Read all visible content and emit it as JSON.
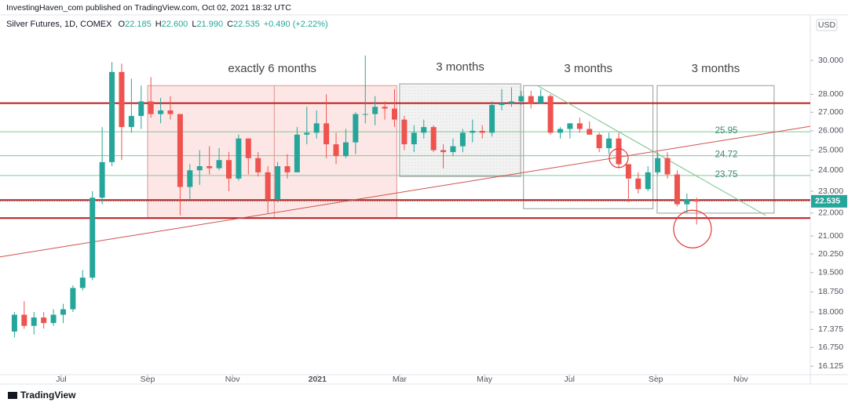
{
  "header": {
    "publisher": "InvestingHaven_com published on TradingView.com, Oct 02, 2021 18:32 UTC",
    "symbol": "Silver Futures, 1D, COMEX",
    "ohlc": [
      [
        "O",
        "22.185"
      ],
      [
        "H",
        "22.600"
      ],
      [
        "L",
        "21.990"
      ],
      [
        "C",
        "22.535"
      ]
    ],
    "change": "+0.490 (+2.22%)",
    "currency": "USD",
    "brand": "TradingView"
  },
  "chart_data": {
    "type": "candlestick",
    "x": [
      "2020-05-25",
      "2020-06-01",
      "2020-06-08",
      "2020-06-15",
      "2020-06-22",
      "2020-06-29",
      "2020-07-06",
      "2020-07-13",
      "2020-07-20",
      "2020-07-27",
      "2020-08-03",
      "2020-08-10",
      "2020-08-17",
      "2020-08-24",
      "2020-08-31",
      "2020-09-07",
      "2020-09-14",
      "2020-09-21",
      "2020-09-28",
      "2020-10-05",
      "2020-10-12",
      "2020-10-19",
      "2020-10-26",
      "2020-11-02",
      "2020-11-09",
      "2020-11-16",
      "2020-11-23",
      "2020-11-30",
      "2020-12-07",
      "2020-12-14",
      "2020-12-21",
      "2020-12-28",
      "2021-01-04",
      "2021-01-11",
      "2021-01-18",
      "2021-01-25",
      "2021-02-01",
      "2021-02-08",
      "2021-02-15",
      "2021-02-22",
      "2021-03-01",
      "2021-03-08",
      "2021-03-15",
      "2021-03-22",
      "2021-03-29",
      "2021-04-05",
      "2021-04-12",
      "2021-04-19",
      "2021-04-26",
      "2021-05-03",
      "2021-05-10",
      "2021-05-17",
      "2021-05-24",
      "2021-05-31",
      "2021-06-07",
      "2021-06-14",
      "2021-06-21",
      "2021-06-28",
      "2021-07-05",
      "2021-07-12",
      "2021-07-19",
      "2021-07-26",
      "2021-08-02",
      "2021-08-09",
      "2021-08-16",
      "2021-08-23",
      "2021-08-30",
      "2021-09-06",
      "2021-09-13",
      "2021-09-20",
      "2021-09-27"
    ],
    "open": [
      17.3,
      17.9,
      17.5,
      17.8,
      17.6,
      17.9,
      18.1,
      18.9,
      19.3,
      22.7,
      24.4,
      29.3,
      26.2,
      26.8,
      27.6,
      26.9,
      27.1,
      26.9,
      23.2,
      24.0,
      24.2,
      24.1,
      24.5,
      23.6,
      25.6,
      24.6,
      23.9,
      22.6,
      24.2,
      23.9,
      25.8,
      25.9,
      26.4,
      25.3,
      24.7,
      25.4,
      26.9,
      26.9,
      27.3,
      27.2,
      26.6,
      25.3,
      25.9,
      26.2,
      25.0,
      24.9,
      25.2,
      25.9,
      26.0,
      25.9,
      27.4,
      27.5,
      27.6,
      27.9,
      27.5,
      27.9,
      25.9,
      26.1,
      26.4,
      26.1,
      25.8,
      25.1,
      25.6,
      24.3,
      23.6,
      23.1,
      23.9,
      24.6,
      23.8,
      22.4,
      22.6
    ],
    "high": [
      18.0,
      18.4,
      18.0,
      18.0,
      18.1,
      18.3,
      19.0,
      19.6,
      23.0,
      26.2,
      29.9,
      29.8,
      28.9,
      28.5,
      29.0,
      27.8,
      27.9,
      26.9,
      24.3,
      25.0,
      25.2,
      25.1,
      24.9,
      25.8,
      25.6,
      24.9,
      24.2,
      24.4,
      24.8,
      26.2,
      27.3,
      27.1,
      28.0,
      25.9,
      26.1,
      27.0,
      30.3,
      27.9,
      27.6,
      28.3,
      26.8,
      26.3,
      26.6,
      26.3,
      25.3,
      25.6,
      26.1,
      26.6,
      26.3,
      27.6,
      28.3,
      28.4,
      28.2,
      28.2,
      28.3,
      28.0,
      26.2,
      26.4,
      26.7,
      26.5,
      25.9,
      25.9,
      25.9,
      24.3,
      23.9,
      24.2,
      24.9,
      24.9,
      24.0,
      22.9,
      22.7
    ],
    "low": [
      17.1,
      17.4,
      17.2,
      17.4,
      17.5,
      17.6,
      18.0,
      18.8,
      19.2,
      22.4,
      24.2,
      24.5,
      25.9,
      26.1,
      26.7,
      26.4,
      26.6,
      21.9,
      22.6,
      23.3,
      23.8,
      24.0,
      23.0,
      23.5,
      23.8,
      23.7,
      22.0,
      22.5,
      23.6,
      23.9,
      25.3,
      25.6,
      24.6,
      24.3,
      24.6,
      24.8,
      26.4,
      26.3,
      26.6,
      26.2,
      25.0,
      24.9,
      25.6,
      24.9,
      24.1,
      24.7,
      24.9,
      25.4,
      25.6,
      25.7,
      27.1,
      27.3,
      27.4,
      27.2,
      27.5,
      25.8,
      25.6,
      25.6,
      25.9,
      25.8,
      24.9,
      24.8,
      24.1,
      22.5,
      22.9,
      23.0,
      23.8,
      23.6,
      22.3,
      22.0,
      21.5
    ],
    "close": [
      17.9,
      17.5,
      17.8,
      17.6,
      17.9,
      18.1,
      18.9,
      19.3,
      22.7,
      24.4,
      29.3,
      26.2,
      26.8,
      27.6,
      26.9,
      27.1,
      26.9,
      23.2,
      24.0,
      24.2,
      24.1,
      24.5,
      23.6,
      25.6,
      24.6,
      23.9,
      22.6,
      24.2,
      23.9,
      25.8,
      25.9,
      26.4,
      25.3,
      24.7,
      25.4,
      26.9,
      26.9,
      27.3,
      27.2,
      26.6,
      25.3,
      25.9,
      26.2,
      25.0,
      24.9,
      25.2,
      25.9,
      26.0,
      25.9,
      27.4,
      27.5,
      27.6,
      27.9,
      27.5,
      27.9,
      25.9,
      26.1,
      26.4,
      26.1,
      25.8,
      25.1,
      25.6,
      24.3,
      23.6,
      23.1,
      23.9,
      24.6,
      23.8,
      22.4,
      22.6,
      22.535
    ],
    "up_color": "#26a69a",
    "down_color": "#ef5350",
    "log_scale": true,
    "grid": false,
    "xlim": [
      "2020-05-18",
      "2021-12-21"
    ],
    "xticks": [
      {
        "value": "2020-07-01",
        "label": "Jul"
      },
      {
        "value": "2020-09-01",
        "label": "Sep"
      },
      {
        "value": "2020-11-01",
        "label": "Nov"
      },
      {
        "value": "2021-01-01",
        "label": "2021"
      },
      {
        "value": "2021-03-01",
        "label": "Mar"
      },
      {
        "value": "2021-05-01",
        "label": "May"
      },
      {
        "value": "2021-07-01",
        "label": "Jul"
      },
      {
        "value": "2021-09-01",
        "label": "Sep"
      },
      {
        "value": "2021-11-01",
        "label": "Nov"
      }
    ],
    "ylim": [
      15.85,
      32.9
    ],
    "yticks": [
      {
        "value": 16.125,
        "label": "16.125"
      },
      {
        "value": 16.75,
        "label": "16.750"
      },
      {
        "value": 17.375,
        "label": "17.375"
      },
      {
        "value": 18,
        "label": "18.000"
      },
      {
        "value": 18.75,
        "label": "18.750"
      },
      {
        "value": 19.5,
        "label": "19.500"
      },
      {
        "value": 20.25,
        "label": "20.250"
      },
      {
        "value": 21,
        "label": "21.000"
      },
      {
        "value": 22,
        "label": "22.000"
      },
      {
        "value": 23,
        "label": "23.000"
      },
      {
        "value": 24,
        "label": "24.000"
      },
      {
        "value": 25,
        "label": "25.000"
      },
      {
        "value": 26,
        "label": "26.000"
      },
      {
        "value": 27,
        "label": "27.000"
      },
      {
        "value": 28,
        "label": "28.000"
      },
      {
        "value": 30,
        "label": "30.000"
      }
    ],
    "support_lines": {
      "color": "#b71c1c",
      "values": [
        27.5,
        22.59,
        21.78
      ]
    },
    "levels": {
      "color": "#81c995",
      "values": [
        25.95,
        24.72,
        23.75
      ]
    },
    "boxes": [
      {
        "label": "exactly 6 months",
        "x": [
          "2020-09-01",
          "2021-02-27"
        ],
        "y": [
          21.78,
          28.5
        ],
        "divider": "2020-12-01",
        "fill": "rgba(239,83,80,0.14)",
        "stroke": "rgba(200,90,90,0.6)"
      },
      {
        "label": "3 months",
        "x": [
          "2021-03-01",
          "2021-05-27"
        ],
        "y": [
          23.7,
          28.6
        ],
        "fill": "rgba(150,150,150,0.12)",
        "stroke": "#999"
      },
      {
        "label": "3 months",
        "x": [
          "2021-05-29",
          "2021-08-30"
        ],
        "y": [
          22.2,
          28.5
        ],
        "fill": "rgba(255,255,255,0)",
        "stroke": "#999"
      },
      {
        "label": "3 months",
        "x": [
          "2021-09-02",
          "2021-11-25"
        ],
        "y": [
          22.0,
          28.5
        ],
        "fill": "rgba(255,255,255,0)",
        "stroke": "#999"
      }
    ],
    "trendlines": [
      {
        "x": [
          "2020-05-18",
          "2021-12-21"
        ],
        "y": [
          20.13,
          26.24
        ],
        "color": "#d05050"
      },
      {
        "x": [
          "2021-06-08",
          "2021-11-19"
        ],
        "y": [
          28.5,
          21.9
        ],
        "color": "#7cc38c"
      }
    ],
    "circles": [
      {
        "x": "2021-08-02",
        "y": 24.6,
        "color": "#e53935"
      },
      {
        "x": "2021-09-24",
        "y": 21.3,
        "color": "#e53935"
      }
    ]
  }
}
